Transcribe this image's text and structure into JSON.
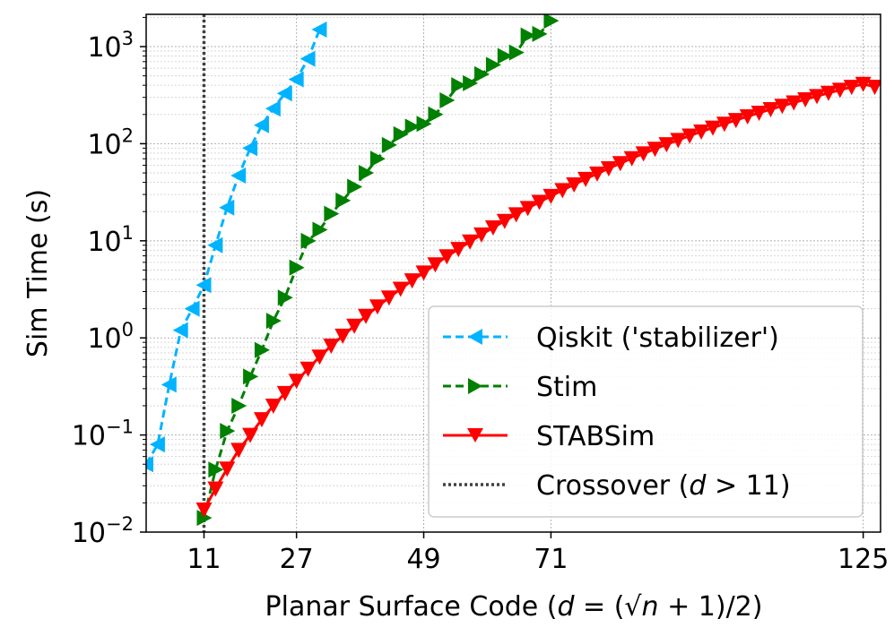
{
  "chart_data": {
    "type": "line",
    "xlabel": "Planar Surface Code (d = (√n + 1)/2)",
    "ylabel": "Sim Time (s)",
    "x_ticks": [
      11,
      27,
      49,
      71,
      125
    ],
    "y_ticks": [
      {
        "value": 0.01,
        "base": "10",
        "exp": "−2"
      },
      {
        "value": 0.1,
        "base": "10",
        "exp": "−1"
      },
      {
        "value": 1,
        "base": "10",
        "exp": "0"
      },
      {
        "value": 10,
        "base": "10",
        "exp": "1"
      },
      {
        "value": 100,
        "base": "10",
        "exp": "2"
      },
      {
        "value": 1000,
        "base": "10",
        "exp": "3"
      }
    ],
    "xlim": [
      1,
      128
    ],
    "ylim": [
      0.01,
      2150
    ],
    "yscale": "log",
    "grid": true,
    "legend_position": "lower-right",
    "series": [
      {
        "name": "Qiskit ('stabilizer')",
        "color": "#00b3ff",
        "linestyle": "dashed",
        "marker": "triangle-left",
        "x": [
          1,
          3,
          5,
          7,
          9,
          11,
          13,
          15,
          17,
          19,
          21,
          23,
          25,
          27,
          29,
          31
        ],
        "y": [
          0.05,
          0.08,
          0.33,
          1.2,
          2.0,
          3.5,
          9,
          22,
          47,
          90,
          155,
          230,
          330,
          460,
          750,
          1500
        ]
      },
      {
        "name": "Stim",
        "color": "#008000",
        "linestyle": "dashed",
        "marker": "triangle-right",
        "x": [
          11,
          13,
          15,
          17,
          19,
          21,
          23,
          25,
          27,
          29,
          31,
          33,
          35,
          37,
          39,
          41,
          43,
          45,
          47,
          49,
          51,
          53,
          55,
          57,
          59,
          61,
          63,
          65,
          67,
          69,
          71
        ],
        "y": [
          0.014,
          0.044,
          0.11,
          0.2,
          0.4,
          0.75,
          1.5,
          2.6,
          5.3,
          10,
          13,
          19,
          26,
          36,
          50,
          70,
          97,
          125,
          150,
          160,
          200,
          280,
          400,
          420,
          520,
          650,
          800,
          870,
          1300,
          1350,
          1850
        ]
      },
      {
        "name": "STABSim",
        "color": "#ff0000",
        "linestyle": "solid",
        "marker": "triangle-down",
        "x": [
          11,
          13,
          15,
          17,
          19,
          21,
          23,
          25,
          27,
          29,
          31,
          33,
          35,
          37,
          39,
          41,
          43,
          45,
          47,
          49,
          51,
          53,
          55,
          57,
          59,
          61,
          63,
          65,
          67,
          69,
          71,
          73,
          75,
          77,
          79,
          81,
          83,
          85,
          87,
          89,
          91,
          93,
          95,
          97,
          99,
          101,
          103,
          105,
          107,
          109,
          111,
          113,
          115,
          117,
          119,
          121,
          123,
          125,
          127
        ],
        "y": [
          0.017,
          0.028,
          0.045,
          0.07,
          0.1,
          0.145,
          0.2,
          0.27,
          0.36,
          0.48,
          0.64,
          0.83,
          1.05,
          1.33,
          1.68,
          2.1,
          2.6,
          3.2,
          3.9,
          4.7,
          5.7,
          6.9,
          8.2,
          9.8,
          11.6,
          13.7,
          16,
          18.7,
          21.7,
          25.1,
          28.9,
          33.2,
          38,
          43.3,
          49.2,
          55.7,
          62.9,
          70.7,
          79.2,
          88.4,
          98.4,
          109,
          121,
          133,
          146,
          160,
          175,
          191,
          208,
          226,
          245,
          265,
          286,
          309,
          333,
          358,
          384,
          412,
          385
        ]
      },
      {
        "name": "Crossover (d > 11)",
        "color": "#404040",
        "linestyle": "dotted",
        "marker": "none",
        "x_const": 11
      }
    ]
  }
}
